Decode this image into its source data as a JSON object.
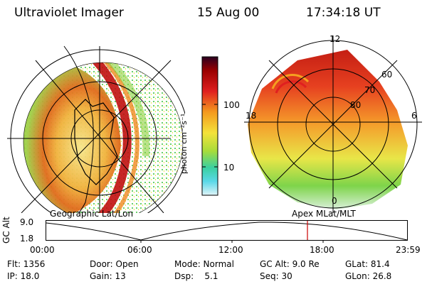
{
  "header": {
    "instrument": "Ultraviolet Imager",
    "date": "15 Aug 00",
    "time": "17:34:18 UT"
  },
  "colorbar": {
    "unit_label": "photon cm⁻²s⁻¹",
    "ticks": [
      "100",
      "10"
    ]
  },
  "left_panel": {
    "caption": "Geographic Lat/Lon"
  },
  "right_panel": {
    "caption": "Apex MLat/MLT",
    "mlt_labels": {
      "top": "12",
      "left": "18",
      "right": "6",
      "bottom": "0"
    },
    "mlat_labels": [
      "60",
      "70",
      "80"
    ]
  },
  "altitude_plot": {
    "ylabel": "GC Alt",
    "y_ticks": [
      "9.0",
      "1.8"
    ],
    "x_ticks": [
      "00:00",
      "06:00",
      "12:00",
      "18:00",
      "23:59"
    ],
    "marker_color": "#cc0000"
  },
  "info": [
    [
      "Flt: 1356",
      "Door: Open",
      "Mode: Normal",
      "GC Alt: 9.0 Re",
      "GLat: 81.4"
    ],
    [
      "IP: 18.0",
      "Gain: 13",
      "Dsp:    5.1",
      "Seq: 30",
      "GLon: 26.8"
    ]
  ]
}
